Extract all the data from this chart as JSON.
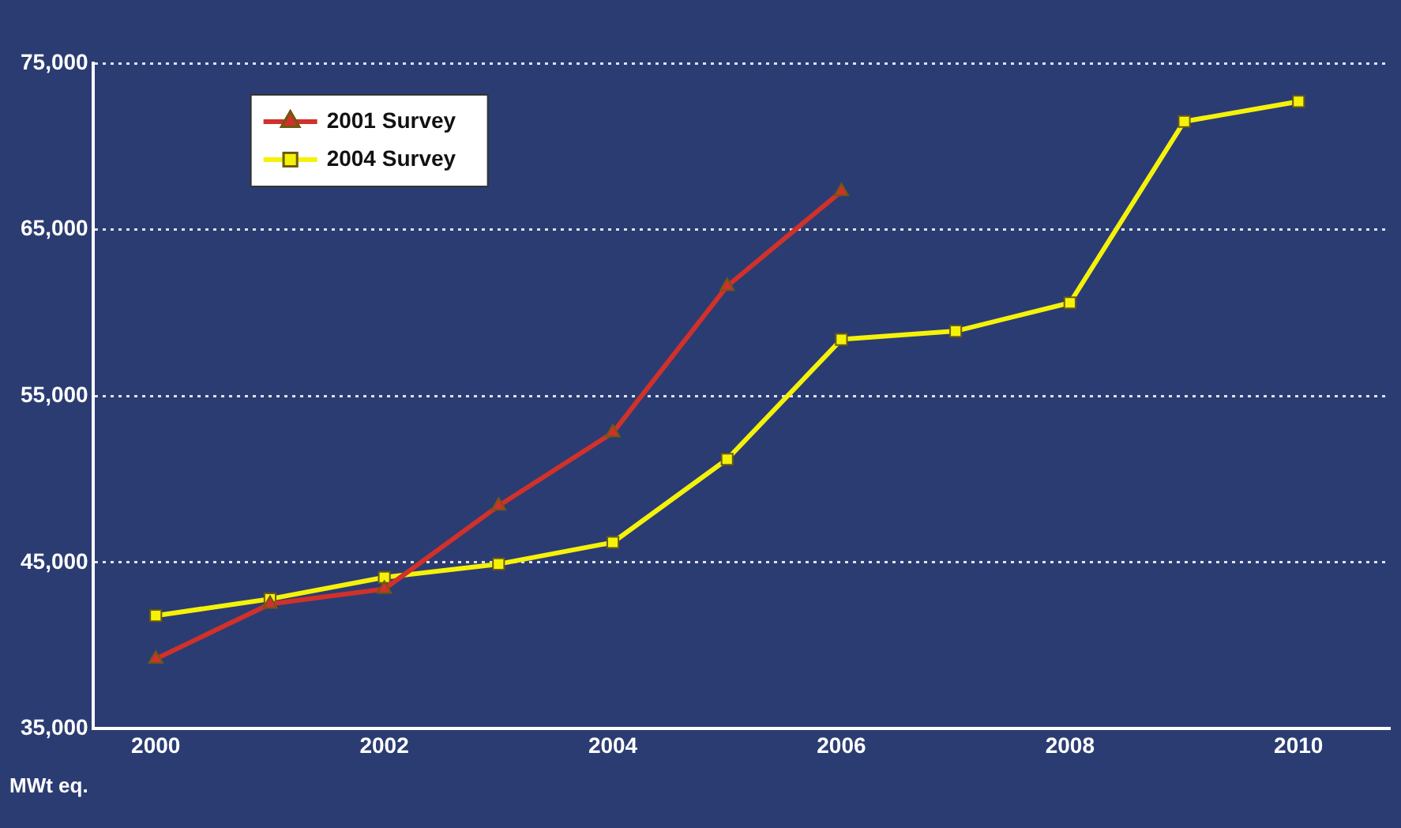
{
  "chart_data": {
    "type": "line",
    "ylabel": "MWt eq.",
    "xlim": [
      1999.45,
      2010.8
    ],
    "xticks": [
      2000,
      2002,
      2004,
      2006,
      2008,
      2010
    ],
    "ylim": [
      35000,
      75000
    ],
    "yticks": [
      {
        "value": 35000,
        "label": "35,000"
      },
      {
        "value": 45000,
        "label": "45,000"
      },
      {
        "value": 55000,
        "label": "55,000"
      },
      {
        "value": 65000,
        "label": "65,000"
      },
      {
        "value": 75000,
        "label": "75,000"
      }
    ],
    "grid": "y",
    "legend": "top left",
    "series": [
      {
        "name": "2001 Survey",
        "color": "#d0312a",
        "marker": "triangle",
        "x": [
          2000,
          2001,
          2002,
          2003,
          2004,
          2005,
          2006
        ],
        "values": [
          39200,
          42500,
          43400,
          48400,
          52800,
          61600,
          67300
        ]
      },
      {
        "name": "2004 Survey",
        "color": "#f5f20a",
        "marker": "square",
        "x": [
          2000,
          2001,
          2002,
          2003,
          2004,
          2005,
          2006,
          2007,
          2008,
          2009,
          2010
        ],
        "values": [
          41800,
          42800,
          44100,
          44900,
          46200,
          51200,
          58400,
          58900,
          60600,
          71500,
          72700
        ]
      }
    ]
  }
}
